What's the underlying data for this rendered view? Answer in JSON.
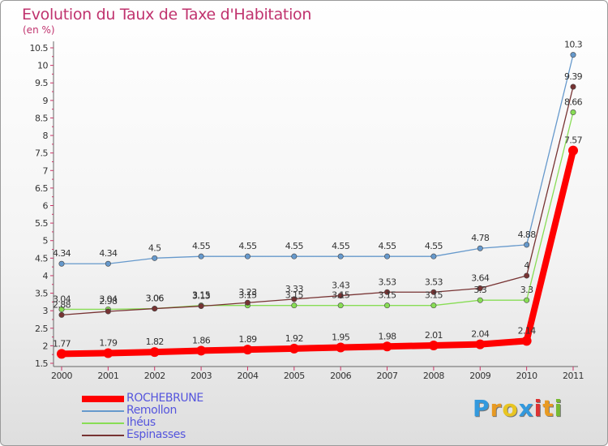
{
  "title": "Evolution du Taux de Taxe d'Habitation",
  "unit": "(en %)",
  "logo": {
    "letters": [
      "P",
      "r",
      "o",
      "x",
      "i",
      "t",
      "i"
    ],
    "colors": [
      "#3399dd",
      "#e89a22",
      "#e8c522",
      "#3399dd",
      "#dd3333",
      "#e89a22",
      "#77bb33"
    ]
  },
  "chart_data": {
    "type": "line",
    "x": [
      "2000",
      "2001",
      "2002",
      "2003",
      "2004",
      "2005",
      "2006",
      "2007",
      "2008",
      "2009",
      "2010",
      "2011"
    ],
    "ylim": [
      1.5,
      10.5
    ],
    "yticks": [
      "1.5",
      "2",
      "2.5",
      "3",
      "3.5",
      "4",
      "4.5",
      "5",
      "5.5",
      "6",
      "6.5",
      "7",
      "7.5",
      "8",
      "8.5",
      "9",
      "9.5",
      "10",
      "10.5"
    ],
    "grid": false,
    "legend_position": "bottom-left",
    "series": [
      {
        "name": "ROCHEBRUNE",
        "color": "#ff0000",
        "values": [
          1.77,
          1.79,
          1.82,
          1.86,
          1.89,
          1.92,
          1.95,
          1.98,
          2.01,
          2.04,
          2.14,
          7.57
        ],
        "labels": [
          "1.77",
          "1.79",
          "1.82",
          "1.86",
          "1.89",
          "1.92",
          "1.95",
          "1.98",
          "2.01",
          "2.04",
          "2.14",
          "7.57"
        ]
      },
      {
        "name": "Remollon",
        "color": "#6699cc",
        "values": [
          4.34,
          4.34,
          4.5,
          4.55,
          4.55,
          4.55,
          4.55,
          4.55,
          4.55,
          4.78,
          4.88,
          10.3
        ],
        "labels": [
          "4.34",
          "4.34",
          "4.5",
          "4.55",
          "4.55",
          "4.55",
          "4.55",
          "4.55",
          "4.55",
          "4.78",
          "4.88",
          "10.3"
        ]
      },
      {
        "name": "Ihéus",
        "color": "#88dd55",
        "values": [
          3.04,
          3.04,
          3.06,
          3.15,
          3.15,
          3.15,
          3.15,
          3.15,
          3.15,
          3.3,
          3.3,
          8.66
        ],
        "labels": [
          "3.04",
          "3.04",
          "3.06",
          "3.15",
          "3.15",
          "3.15",
          "3.15",
          "3.15",
          "3.15",
          "3.3",
          "3.3",
          "8.66"
        ]
      },
      {
        "name": "Espinasses",
        "color": "#773333",
        "values": [
          2.88,
          2.98,
          3.06,
          3.13,
          3.23,
          3.33,
          3.43,
          3.53,
          3.53,
          3.64,
          4.0,
          9.39
        ],
        "labels": [
          "2.88",
          "2.98",
          "3.06",
          "3.13",
          "3.23",
          "3.33",
          "3.43",
          "3.53",
          "3.53",
          "3.64",
          "4",
          "9.39"
        ]
      }
    ]
  }
}
